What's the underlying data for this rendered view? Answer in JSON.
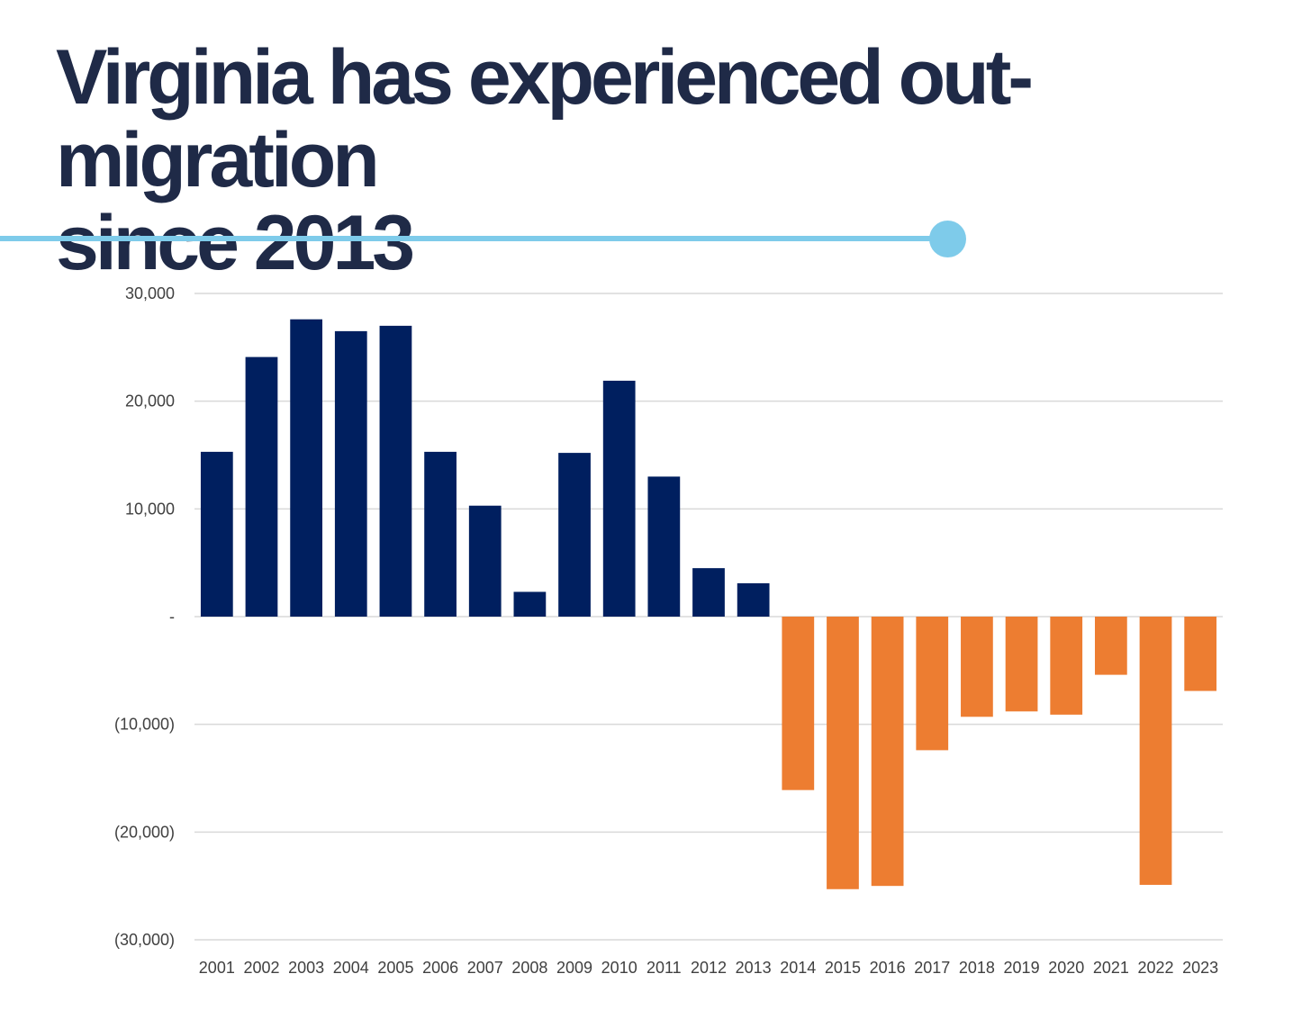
{
  "title_lines": [
    "Virginia has experienced out-migration",
    "since 2013"
  ],
  "colors": {
    "title": "#1f2a47",
    "rule": "#7ecbea",
    "positive": "#001f5f",
    "negative": "#ed7d31",
    "grid": "#d9d9d9"
  },
  "chart_data": {
    "type": "bar",
    "categories": [
      "2001",
      "2002",
      "2003",
      "2004",
      "2005",
      "2006",
      "2007",
      "2008",
      "2009",
      "2010",
      "2011",
      "2012",
      "2013",
      "2014",
      "2015",
      "2016",
      "2017",
      "2018",
      "2019",
      "2020",
      "2021",
      "2022",
      "2023"
    ],
    "values": [
      15300,
      24100,
      27600,
      26500,
      27000,
      15300,
      10300,
      2300,
      15200,
      21900,
      13000,
      4500,
      3100,
      -16100,
      -25300,
      -25000,
      -12400,
      -9300,
      -8800,
      -9100,
      -5400,
      -24900,
      -6900
    ],
    "ylim": [
      -30000,
      30000
    ],
    "y_ticks": [
      30000,
      20000,
      10000,
      0,
      -10000,
      -20000,
      -30000
    ],
    "y_tick_labels": [
      "30,000",
      "20,000",
      "10,000",
      "-",
      "(10,000)",
      "(20,000)",
      "(30,000)"
    ],
    "grid": true,
    "legend": "none"
  }
}
